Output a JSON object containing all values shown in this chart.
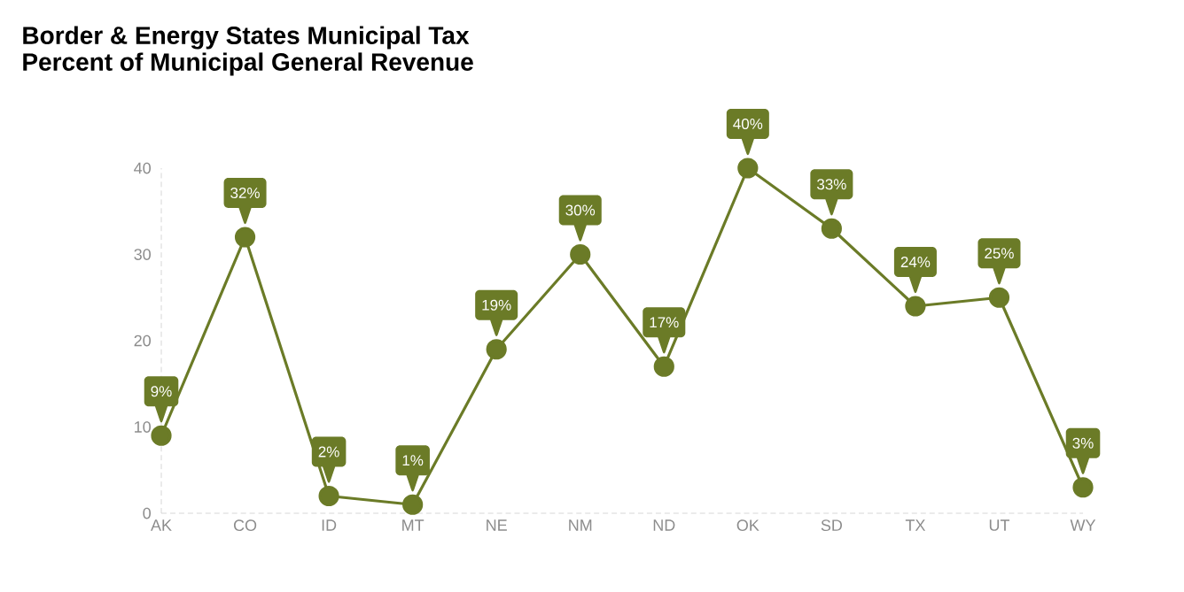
{
  "chart_data": {
    "type": "line",
    "title": "Border & Energy States Municipal Tax",
    "subtitle": "Percent of Municipal General Revenue",
    "categories": [
      "AK",
      "CO",
      "ID",
      "MT",
      "NE",
      "NM",
      "ND",
      "OK",
      "SD",
      "TX",
      "UT",
      "WY"
    ],
    "values": [
      9,
      32,
      2,
      1,
      19,
      30,
      17,
      40,
      33,
      24,
      25,
      3
    ],
    "value_labels": [
      "9%",
      "32%",
      "2%",
      "1%",
      "19%",
      "30%",
      "17%",
      "40%",
      "33%",
      "24%",
      "25%",
      "3%"
    ],
    "color": "#6b7b27",
    "ylim": [
      0,
      40
    ],
    "yticks": [
      0,
      10,
      20,
      30,
      40
    ],
    "grid": false,
    "marker": "circle",
    "line_style": "solid"
  }
}
